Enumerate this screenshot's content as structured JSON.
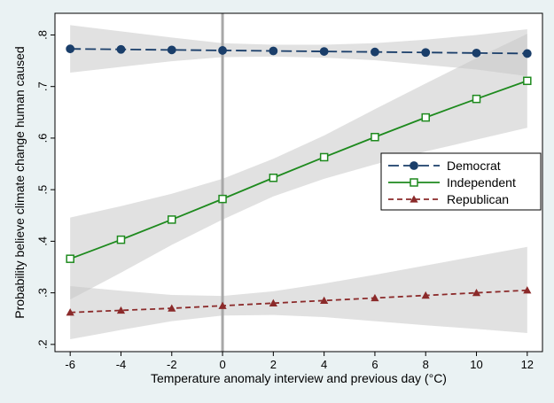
{
  "chart_data": {
    "type": "line",
    "xlabel": "Temperature anomaly interview and previous day (°C)",
    "ylabel": "Probability believe climate change human caused",
    "x": [
      -6,
      -4,
      -2,
      0,
      2,
      4,
      6,
      8,
      10,
      12
    ],
    "x_tick_labels": [
      "-6",
      "-4",
      "-2",
      "0",
      "2",
      "4",
      "6",
      "8",
      "10",
      "12"
    ],
    "xlim": [
      -6.6,
      12.6
    ],
    "y_ticks": [
      0.2,
      0.3,
      0.4,
      0.5,
      0.6,
      0.7,
      0.8
    ],
    "y_tick_labels": [
      ".2",
      ".3",
      ".4",
      ".5",
      ".6",
      ".7",
      ".8"
    ],
    "ylim": [
      0.186,
      0.842
    ],
    "reference_line_x": 0,
    "grid": false,
    "legend_position": "right",
    "series": [
      {
        "name": "Democrat",
        "color": "#1a3e6a",
        "marker": "circle-filled",
        "line_style": "long-dash",
        "values": [
          0.773,
          0.772,
          0.771,
          0.77,
          0.769,
          0.768,
          0.767,
          0.766,
          0.765,
          0.764
        ],
        "ci_lower": [
          0.727,
          0.738,
          0.749,
          0.757,
          0.758,
          0.756,
          0.751,
          0.742,
          0.733,
          0.72
        ],
        "ci_upper": [
          0.819,
          0.807,
          0.795,
          0.784,
          0.781,
          0.781,
          0.784,
          0.791,
          0.8,
          0.811
        ]
      },
      {
        "name": "Independent",
        "color": "#1e8a1e",
        "marker": "square-hollow",
        "line_style": "solid",
        "values": [
          0.366,
          0.403,
          0.442,
          0.482,
          0.523,
          0.563,
          0.602,
          0.64,
          0.676,
          0.711
        ],
        "ci_lower": [
          0.287,
          0.339,
          0.393,
          0.442,
          0.487,
          0.521,
          0.549,
          0.574,
          0.597,
          0.62
        ],
        "ci_upper": [
          0.446,
          0.468,
          0.492,
          0.521,
          0.56,
          0.605,
          0.656,
          0.706,
          0.755,
          0.802
        ]
      },
      {
        "name": "Republican",
        "color": "#8b2a2a",
        "marker": "triangle-filled",
        "line_style": "short-dash",
        "values": [
          0.262,
          0.266,
          0.27,
          0.275,
          0.28,
          0.285,
          0.29,
          0.295,
          0.3,
          0.305
        ],
        "ci_lower": [
          0.21,
          0.228,
          0.245,
          0.256,
          0.257,
          0.253,
          0.245,
          0.237,
          0.23,
          0.222
        ],
        "ci_upper": [
          0.313,
          0.304,
          0.296,
          0.294,
          0.303,
          0.318,
          0.335,
          0.353,
          0.371,
          0.389
        ]
      }
    ]
  },
  "colors": {
    "figure_background": "#eaf2f3",
    "plot_background": "#ffffff",
    "ci_band": "#c8c8c8",
    "reference_line": "#a8a8a8"
  }
}
